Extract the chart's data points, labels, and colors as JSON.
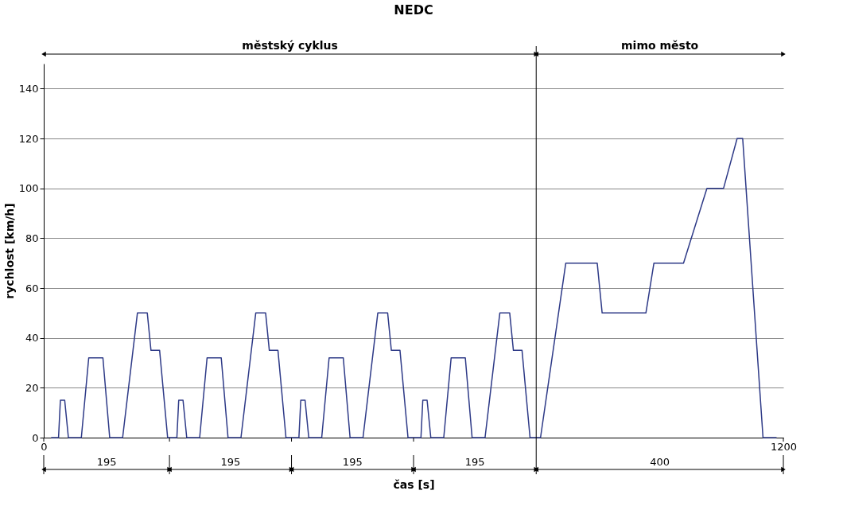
{
  "chart_data": {
    "type": "line",
    "title": "NEDC",
    "xlabel": "čas [s]",
    "ylabel": "rychlost [km/h]",
    "x": [
      12,
      24,
      27,
      34,
      40,
      61,
      73,
      96,
      107,
      128,
      152,
      168,
      174,
      188,
      201,
      216,
      219,
      226,
      232,
      253,
      265,
      288,
      299,
      320,
      344,
      360,
      366,
      380,
      393,
      414,
      417,
      424,
      430,
      451,
      463,
      486,
      497,
      518,
      542,
      558,
      564,
      578,
      591,
      612,
      615,
      622,
      628,
      649,
      661,
      684,
      695,
      716,
      740,
      756,
      762,
      776,
      789,
      806,
      847,
      898,
      906,
      977,
      990,
      1038,
      1076,
      1103,
      1125,
      1134,
      1167,
      1189
    ],
    "series": [
      {
        "color": "#2e3a87",
        "values": [
          0,
          0,
          15,
          15,
          0,
          0,
          32,
          32,
          0,
          0,
          50,
          50,
          35,
          35,
          0,
          0,
          15,
          15,
          0,
          0,
          32,
          32,
          0,
          0,
          50,
          50,
          35,
          35,
          0,
          0,
          15,
          15,
          0,
          0,
          32,
          32,
          0,
          0,
          50,
          50,
          35,
          35,
          0,
          0,
          15,
          15,
          0,
          0,
          32,
          32,
          0,
          0,
          50,
          50,
          35,
          35,
          0,
          0,
          70,
          70,
          50,
          50,
          70,
          70,
          100,
          100,
          120,
          120,
          0,
          0
        ]
      }
    ],
    "xlim": [
      0,
      1200
    ],
    "xticks": [
      0,
      {
        "value": 204,
        "label": null
      },
      {
        "value": 402,
        "label": null
      },
      {
        "value": 600,
        "label": null
      },
      1200
    ],
    "ylim": [
      0,
      150
    ],
    "yticks": [
      0,
      20,
      40,
      60,
      80,
      100,
      120,
      140
    ],
    "grid": "y",
    "marker": "none",
    "line_style": "solid",
    "ref_lines": [
      {
        "axis": "x",
        "value": 799,
        "color": "#000000"
      }
    ],
    "annotations": [
      "městský cyklus",
      "mimo město",
      "195",
      "195",
      "195",
      "195",
      "400"
    ]
  }
}
